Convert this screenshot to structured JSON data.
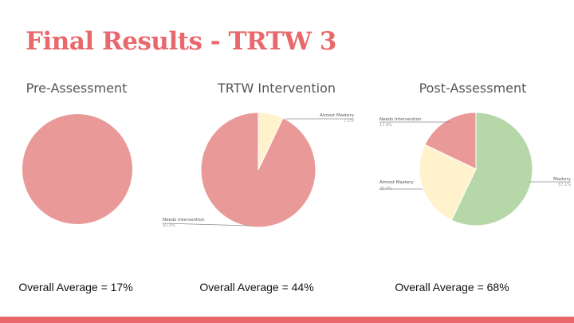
{
  "slide": {
    "title": "Final Results - TRTW 3",
    "accent_color": "#e8686b"
  },
  "chart_data": [
    {
      "type": "pie",
      "title": "Pre-Assessment",
      "caption": "Overall Average = 17%",
      "slices": [
        {
          "label": "",
          "value": 100,
          "color": "#ea9999"
        }
      ]
    },
    {
      "type": "pie",
      "title": "TRTW Intervention",
      "caption": "Overall Average = 44%",
      "slices": [
        {
          "label": "Almost Mastery",
          "value": 7.1,
          "display": "7.1%",
          "color": "#fff2cc"
        },
        {
          "label": "Needs Intervention",
          "value": 92.9,
          "display": "92.9%",
          "color": "#ea9999"
        }
      ]
    },
    {
      "type": "pie",
      "title": "Post-Assessment",
      "caption": "Overall Average = 68%",
      "slices": [
        {
          "label": "Mastery",
          "value": 57.1,
          "display": "57.1%",
          "color": "#b6d7a8"
        },
        {
          "label": "Almost Mastery",
          "value": 25.0,
          "display": "25.0%",
          "color": "#fff2cc"
        },
        {
          "label": "Needs Intervention",
          "value": 17.9,
          "display": "17.9%",
          "color": "#ea9999"
        }
      ]
    }
  ]
}
